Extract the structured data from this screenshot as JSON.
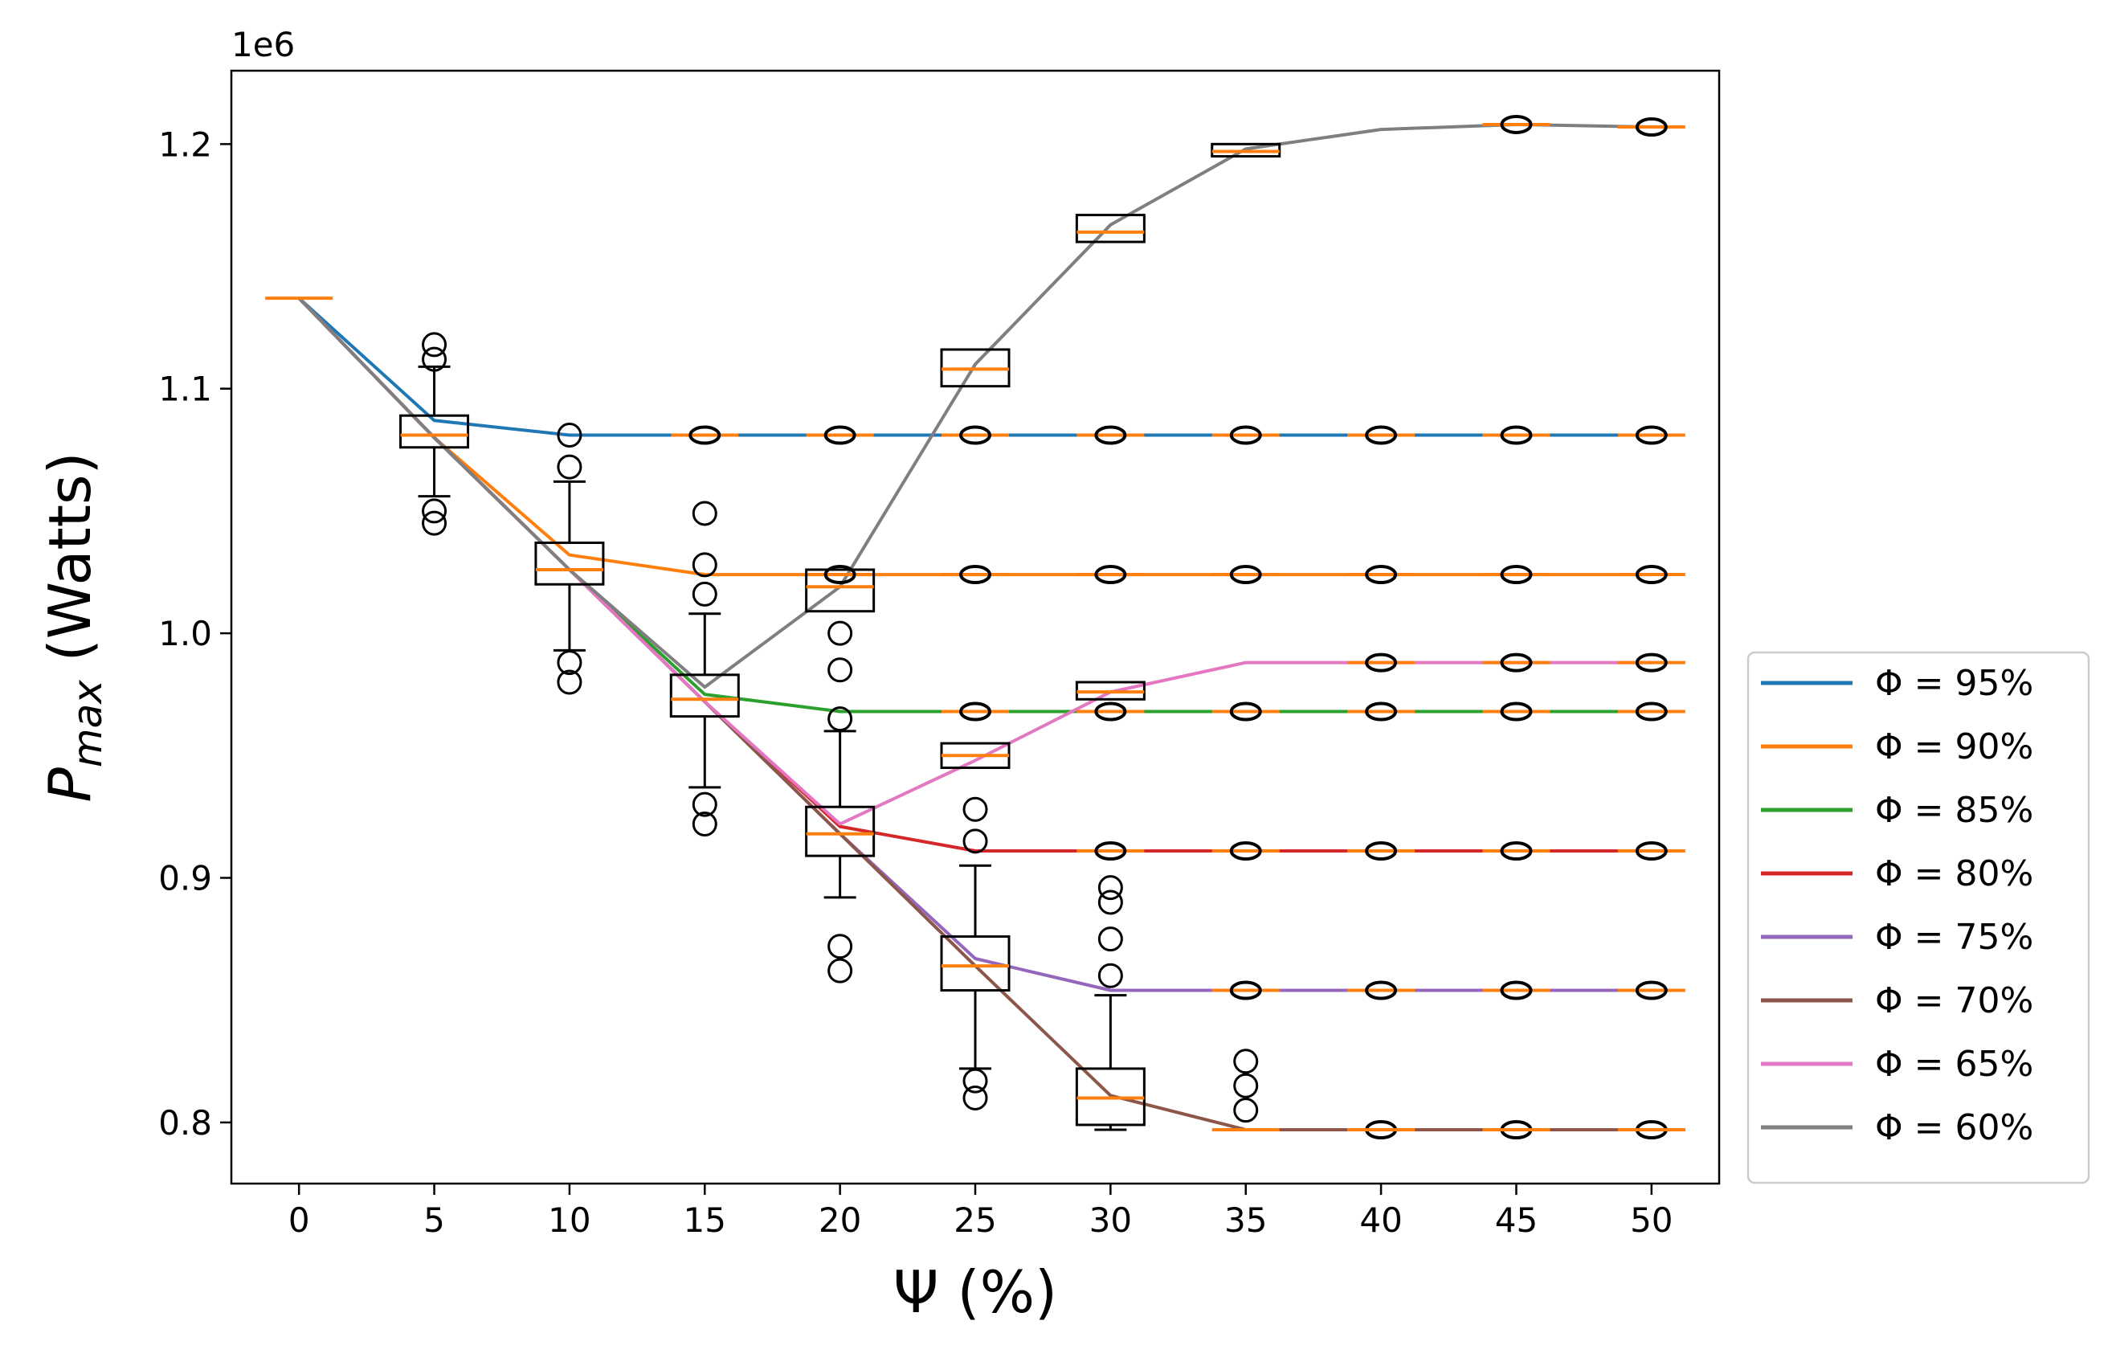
{
  "chart_data": {
    "type": "line",
    "title": "",
    "xlabel": "Ψ (%)",
    "ylabel_main": "P",
    "ylabel_sub": "max",
    "ylabel_unit": " (Watts)",
    "offset_text": "1e6",
    "x": [
      0,
      5,
      10,
      15,
      20,
      25,
      30,
      35,
      40,
      45,
      50
    ],
    "xlim": [
      -2.5,
      52.5
    ],
    "ylim": [
      0.775,
      1.23
    ],
    "x_ticks": [
      0,
      5,
      10,
      15,
      20,
      25,
      30,
      35,
      40,
      45,
      50
    ],
    "x_tick_labels": [
      "0",
      "5",
      "10",
      "15",
      "20",
      "25",
      "30",
      "35",
      "40",
      "45",
      "50"
    ],
    "y_ticks": [
      0.8,
      0.9,
      1.0,
      1.1,
      1.2
    ],
    "y_tick_labels": [
      "0.8",
      "0.9",
      "1.0",
      "1.1",
      "1.2"
    ],
    "grid": false,
    "legend_position": "right",
    "series": [
      {
        "name": "Φ = 95%",
        "color": "#1f77b4",
        "values": [
          1.137,
          1.087,
          1.081,
          1.081,
          1.081,
          1.081,
          1.081,
          1.081,
          1.081,
          1.081,
          1.081
        ]
      },
      {
        "name": "Φ = 90%",
        "color": "#ff7f0e",
        "values": [
          1.137,
          1.08,
          1.032,
          1.024,
          1.024,
          1.024,
          1.024,
          1.024,
          1.024,
          1.024,
          1.024
        ]
      },
      {
        "name": "Φ = 85%",
        "color": "#2ca02c",
        "values": [
          1.137,
          1.08,
          1.026,
          0.975,
          0.968,
          0.968,
          0.968,
          0.968,
          0.968,
          0.968,
          0.968
        ]
      },
      {
        "name": "Φ = 80%",
        "color": "#d62728",
        "values": [
          1.137,
          1.08,
          1.026,
          0.972,
          0.921,
          0.911,
          0.911,
          0.911,
          0.911,
          0.911,
          0.911
        ]
      },
      {
        "name": "Φ = 75%",
        "color": "#9467bd",
        "values": [
          1.137,
          1.08,
          1.026,
          0.972,
          0.918,
          0.867,
          0.854,
          0.854,
          0.854,
          0.854,
          0.854
        ]
      },
      {
        "name": "Φ = 70%",
        "color": "#8c564b",
        "values": [
          1.137,
          1.08,
          1.026,
          0.972,
          0.918,
          0.864,
          0.811,
          0.797,
          0.797,
          0.797,
          0.797
        ]
      },
      {
        "name": "Φ = 65%",
        "color": "#e377c2",
        "values": [
          1.137,
          1.08,
          1.026,
          0.972,
          0.922,
          0.948,
          0.976,
          0.988,
          0.988,
          0.988,
          0.988
        ]
      },
      {
        "name": "Φ = 60%",
        "color": "#7f7f7f",
        "values": [
          1.137,
          1.08,
          1.026,
          0.978,
          1.019,
          1.11,
          1.167,
          1.198,
          1.206,
          1.208,
          1.207
        ]
      }
    ],
    "boxplots": [
      {
        "x": 0,
        "q1": 1.137,
        "median": 1.137,
        "q3": 1.137,
        "whisker_low": 1.137,
        "whisker_high": 1.137,
        "outliers": []
      },
      {
        "x": 5,
        "q1": 1.076,
        "median": 1.081,
        "q3": 1.089,
        "whisker_low": 1.056,
        "whisker_high": 1.109,
        "outliers": [
          1.045,
          1.05,
          1.112,
          1.118
        ]
      },
      {
        "x": 10,
        "q1": 1.02,
        "median": 1.026,
        "q3": 1.037,
        "whisker_low": 0.993,
        "whisker_high": 1.062,
        "outliers": [
          0.98,
          0.988,
          1.068,
          1.081
        ]
      },
      {
        "x": 15,
        "q1": 0.966,
        "median": 0.973,
        "q3": 0.983,
        "whisker_low": 0.937,
        "whisker_high": 1.008,
        "outliers": [
          0.922,
          0.93,
          1.016,
          1.028,
          1.049
        ]
      },
      {
        "x": 20,
        "q1": 0.909,
        "median": 0.918,
        "q3": 0.929,
        "whisker_low": 0.892,
        "whisker_high": 0.96,
        "outliers": [
          0.862,
          0.872,
          0.965,
          0.985,
          1.0
        ]
      },
      {
        "x": 25,
        "q1": 0.854,
        "median": 0.864,
        "q3": 0.876,
        "whisker_low": 0.822,
        "whisker_high": 0.905,
        "outliers": [
          0.81,
          0.817,
          0.915,
          0.928
        ]
      },
      {
        "x": 30,
        "q1": 0.799,
        "median": 0.81,
        "q3": 0.822,
        "whisker_low": 0.797,
        "whisker_high": 0.852,
        "outliers": [
          0.86,
          0.875,
          0.89,
          0.896
        ]
      },
      {
        "x": 35,
        "q1": 0.797,
        "median": 0.797,
        "q3": 0.797,
        "whisker_low": 0.797,
        "whisker_high": 0.797,
        "outliers": [
          0.805,
          0.815,
          0.825
        ]
      },
      {
        "x": 40,
        "q1": 0.797,
        "median": 0.797,
        "q3": 0.797,
        "whisker_low": 0.797,
        "whisker_high": 0.797,
        "outliers": []
      },
      {
        "x": 45,
        "q1": 0.797,
        "median": 0.797,
        "q3": 0.797,
        "whisker_low": 0.797,
        "whisker_high": 0.797,
        "outliers": []
      },
      {
        "x": 50,
        "q1": 0.797,
        "median": 0.797,
        "q3": 0.797,
        "whisker_low": 0.797,
        "whisker_high": 0.797,
        "outliers": []
      }
    ],
    "extra_boxes": [
      {
        "x": 20,
        "q1": 1.009,
        "median": 1.019,
        "q3": 1.026
      },
      {
        "x": 25,
        "q1": 1.101,
        "median": 1.108,
        "q3": 1.116
      },
      {
        "x": 25,
        "q1": 0.945,
        "median": 0.95,
        "q3": 0.955
      },
      {
        "x": 30,
        "q1": 1.16,
        "median": 1.164,
        "q3": 1.171
      },
      {
        "x": 30,
        "q1": 0.973,
        "median": 0.976,
        "q3": 0.98
      },
      {
        "x": 35,
        "q1": 1.195,
        "median": 1.197,
        "q3": 1.2
      }
    ]
  }
}
